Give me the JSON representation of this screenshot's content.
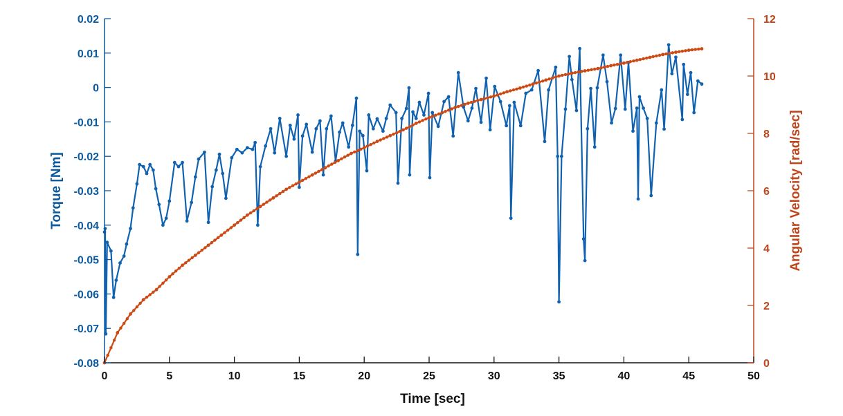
{
  "chart_data": {
    "type": "line",
    "title": "",
    "xlabel": "Time [sec]",
    "ylabel_left": "Torque [Nm]",
    "ylabel_right": "Angular Velocity [rad/sec]",
    "xlim": [
      0,
      50
    ],
    "ylim_left": [
      -0.08,
      0.02
    ],
    "ylim_right": [
      0,
      12
    ],
    "xticks": [
      "0",
      "5",
      "10",
      "15",
      "20",
      "25",
      "30",
      "35",
      "40",
      "45",
      "50"
    ],
    "yticks_left": [
      "-0.08",
      "-0.07",
      "-0.06",
      "-0.05",
      "-0.04",
      "-0.03",
      "-0.02",
      "-0.01",
      "0",
      "0.01",
      "0.02"
    ],
    "yticks_right": [
      "0",
      "2",
      "4",
      "6",
      "8",
      "10",
      "12"
    ],
    "grid": false,
    "legend": "none",
    "colors": {
      "torque": "#1062b0",
      "velocity": "#cc4a14",
      "left_axis": "#0b5aa0",
      "right_axis": "#c0441a"
    },
    "series": [
      {
        "axis": "left",
        "x": [
          0.0,
          0.05,
          0.1,
          0.2,
          0.5,
          0.7,
          0.9,
          1.2,
          1.5,
          1.7,
          2.0,
          2.2,
          2.5,
          2.7,
          3.0,
          3.25,
          3.5,
          3.75,
          3.95,
          4.2,
          4.5,
          4.75,
          5.0,
          5.4,
          5.7,
          6.0,
          6.35,
          6.7,
          7.0,
          7.25,
          7.7,
          8.0,
          8.3,
          8.6,
          8.85,
          9.1,
          9.35,
          9.8,
          10.2,
          10.6,
          11.0,
          11.4,
          11.6,
          11.8,
          12.0,
          12.4,
          12.8,
          13.1,
          13.5,
          14.0,
          14.3,
          14.6,
          14.9,
          15.0,
          15.25,
          15.55,
          16.0,
          16.3,
          16.6,
          16.85,
          17.1,
          17.45,
          17.8,
          18.1,
          18.35,
          18.8,
          19.1,
          19.4,
          19.5,
          19.65,
          19.9,
          20.2,
          20.35,
          20.7,
          21.0,
          21.45,
          21.7,
          22.0,
          22.45,
          22.6,
          22.9,
          23.25,
          23.45,
          23.5,
          23.75,
          24.0,
          24.25,
          24.6,
          24.95,
          25.05,
          25.25,
          25.7,
          26.15,
          26.5,
          26.85,
          27.25,
          27.65,
          28.0,
          28.3,
          28.6,
          29.0,
          29.4,
          29.7,
          30.05,
          30.5,
          30.95,
          31.2,
          31.3,
          31.55,
          32.05,
          32.45,
          32.9,
          33.4,
          33.9,
          34.2,
          34.75,
          34.9,
          35.0,
          35.2,
          35.5,
          35.8,
          36.0,
          36.35,
          36.6,
          36.9,
          37.0,
          37.2,
          37.45,
          37.75,
          37.95,
          38.4,
          38.7,
          39.05,
          39.35,
          39.75,
          40.1,
          40.35,
          40.7,
          41.0,
          41.1,
          41.2,
          41.5,
          41.8,
          42.1,
          42.5,
          42.9,
          43.1,
          43.45,
          43.7,
          44.0,
          44.5,
          44.6,
          44.9,
          45.15,
          45.4,
          45.7,
          46.0
        ],
        "y": [
          -0.042,
          -0.041,
          -0.0716,
          -0.045,
          -0.0475,
          -0.061,
          -0.056,
          -0.051,
          -0.049,
          -0.0455,
          -0.041,
          -0.035,
          -0.028,
          -0.0224,
          -0.023,
          -0.025,
          -0.0224,
          -0.024,
          -0.0294,
          -0.034,
          -0.04,
          -0.038,
          -0.033,
          -0.0218,
          -0.023,
          -0.0218,
          -0.0388,
          -0.0334,
          -0.026,
          -0.0208,
          -0.0188,
          -0.0392,
          -0.0288,
          -0.024,
          -0.0194,
          -0.025,
          -0.0322,
          -0.0204,
          -0.018,
          -0.019,
          -0.0175,
          -0.018,
          -0.016,
          -0.04,
          -0.023,
          -0.017,
          -0.012,
          -0.019,
          -0.009,
          -0.02,
          -0.011,
          -0.015,
          -0.008,
          -0.029,
          -0.0141,
          -0.0107,
          -0.0188,
          -0.012,
          -0.0097,
          -0.0254,
          -0.012,
          -0.0083,
          -0.0214,
          -0.013,
          -0.0103,
          -0.0173,
          -0.011,
          -0.0031,
          -0.0485,
          -0.0127,
          -0.014,
          -0.0242,
          -0.008,
          -0.012,
          -0.0091,
          -0.0127,
          -0.009,
          -0.0051,
          -0.0073,
          -0.0278,
          -0.009,
          -0.0061,
          -0.0001,
          -0.0254,
          -0.0071,
          -0.009,
          -0.0043,
          -0.008,
          -0.0017,
          -0.0262,
          -0.0073,
          -0.0113,
          -0.0041,
          -0.0027,
          -0.0141,
          0.0043,
          -0.0057,
          -0.0097,
          -0.006,
          -0.0003,
          -0.0101,
          0.0027,
          -0.0123,
          0.0003,
          -0.0041,
          -0.0111,
          -0.0053,
          -0.038,
          -0.0043,
          -0.0111,
          -0.0017,
          -0.0007,
          0.0049,
          -0.0157,
          -0.0007,
          0.0059,
          -0.02,
          -0.0623,
          -0.02,
          -0.0063,
          0.009,
          0.0023,
          -0.0067,
          0.0113,
          -0.044,
          -0.0503,
          -0.012,
          -0.0003,
          -0.0173,
          -0.0001,
          0.0094,
          0.0017,
          -0.0103,
          -0.0061,
          0.0094,
          -0.0063,
          0.0073,
          -0.0127,
          -0.006,
          -0.0324,
          -0.0027,
          -0.006,
          -0.009,
          -0.0314,
          -0.0103,
          -0.0007,
          -0.0121,
          0.0124,
          0.004,
          0.0088,
          -0.0093,
          0.0067,
          -0.002,
          0.0043,
          -0.0073,
          0.0019,
          0.001
        ]
      },
      {
        "axis": "right",
        "x": [
          0,
          1,
          2,
          3,
          4,
          5,
          6,
          7,
          8,
          9,
          10,
          11,
          12,
          13,
          14,
          15,
          16,
          17,
          18,
          19,
          20,
          21,
          22,
          23,
          24,
          25,
          26,
          27,
          28,
          29,
          30,
          31,
          32,
          33,
          34,
          35,
          36,
          37,
          38,
          39,
          40,
          41,
          42,
          43,
          44,
          45,
          46
        ],
        "y": [
          0,
          1.05,
          1.7,
          2.2,
          2.55,
          3.0,
          3.4,
          3.75,
          4.1,
          4.45,
          4.8,
          5.15,
          5.45,
          5.75,
          6.05,
          6.3,
          6.55,
          6.8,
          7.05,
          7.3,
          7.5,
          7.72,
          7.92,
          8.12,
          8.35,
          8.55,
          8.72,
          8.9,
          9.05,
          9.18,
          9.3,
          9.45,
          9.58,
          9.72,
          9.86,
          10.0,
          10.1,
          10.18,
          10.26,
          10.36,
          10.45,
          10.55,
          10.65,
          10.75,
          10.83,
          10.9,
          10.95
        ]
      }
    ]
  }
}
